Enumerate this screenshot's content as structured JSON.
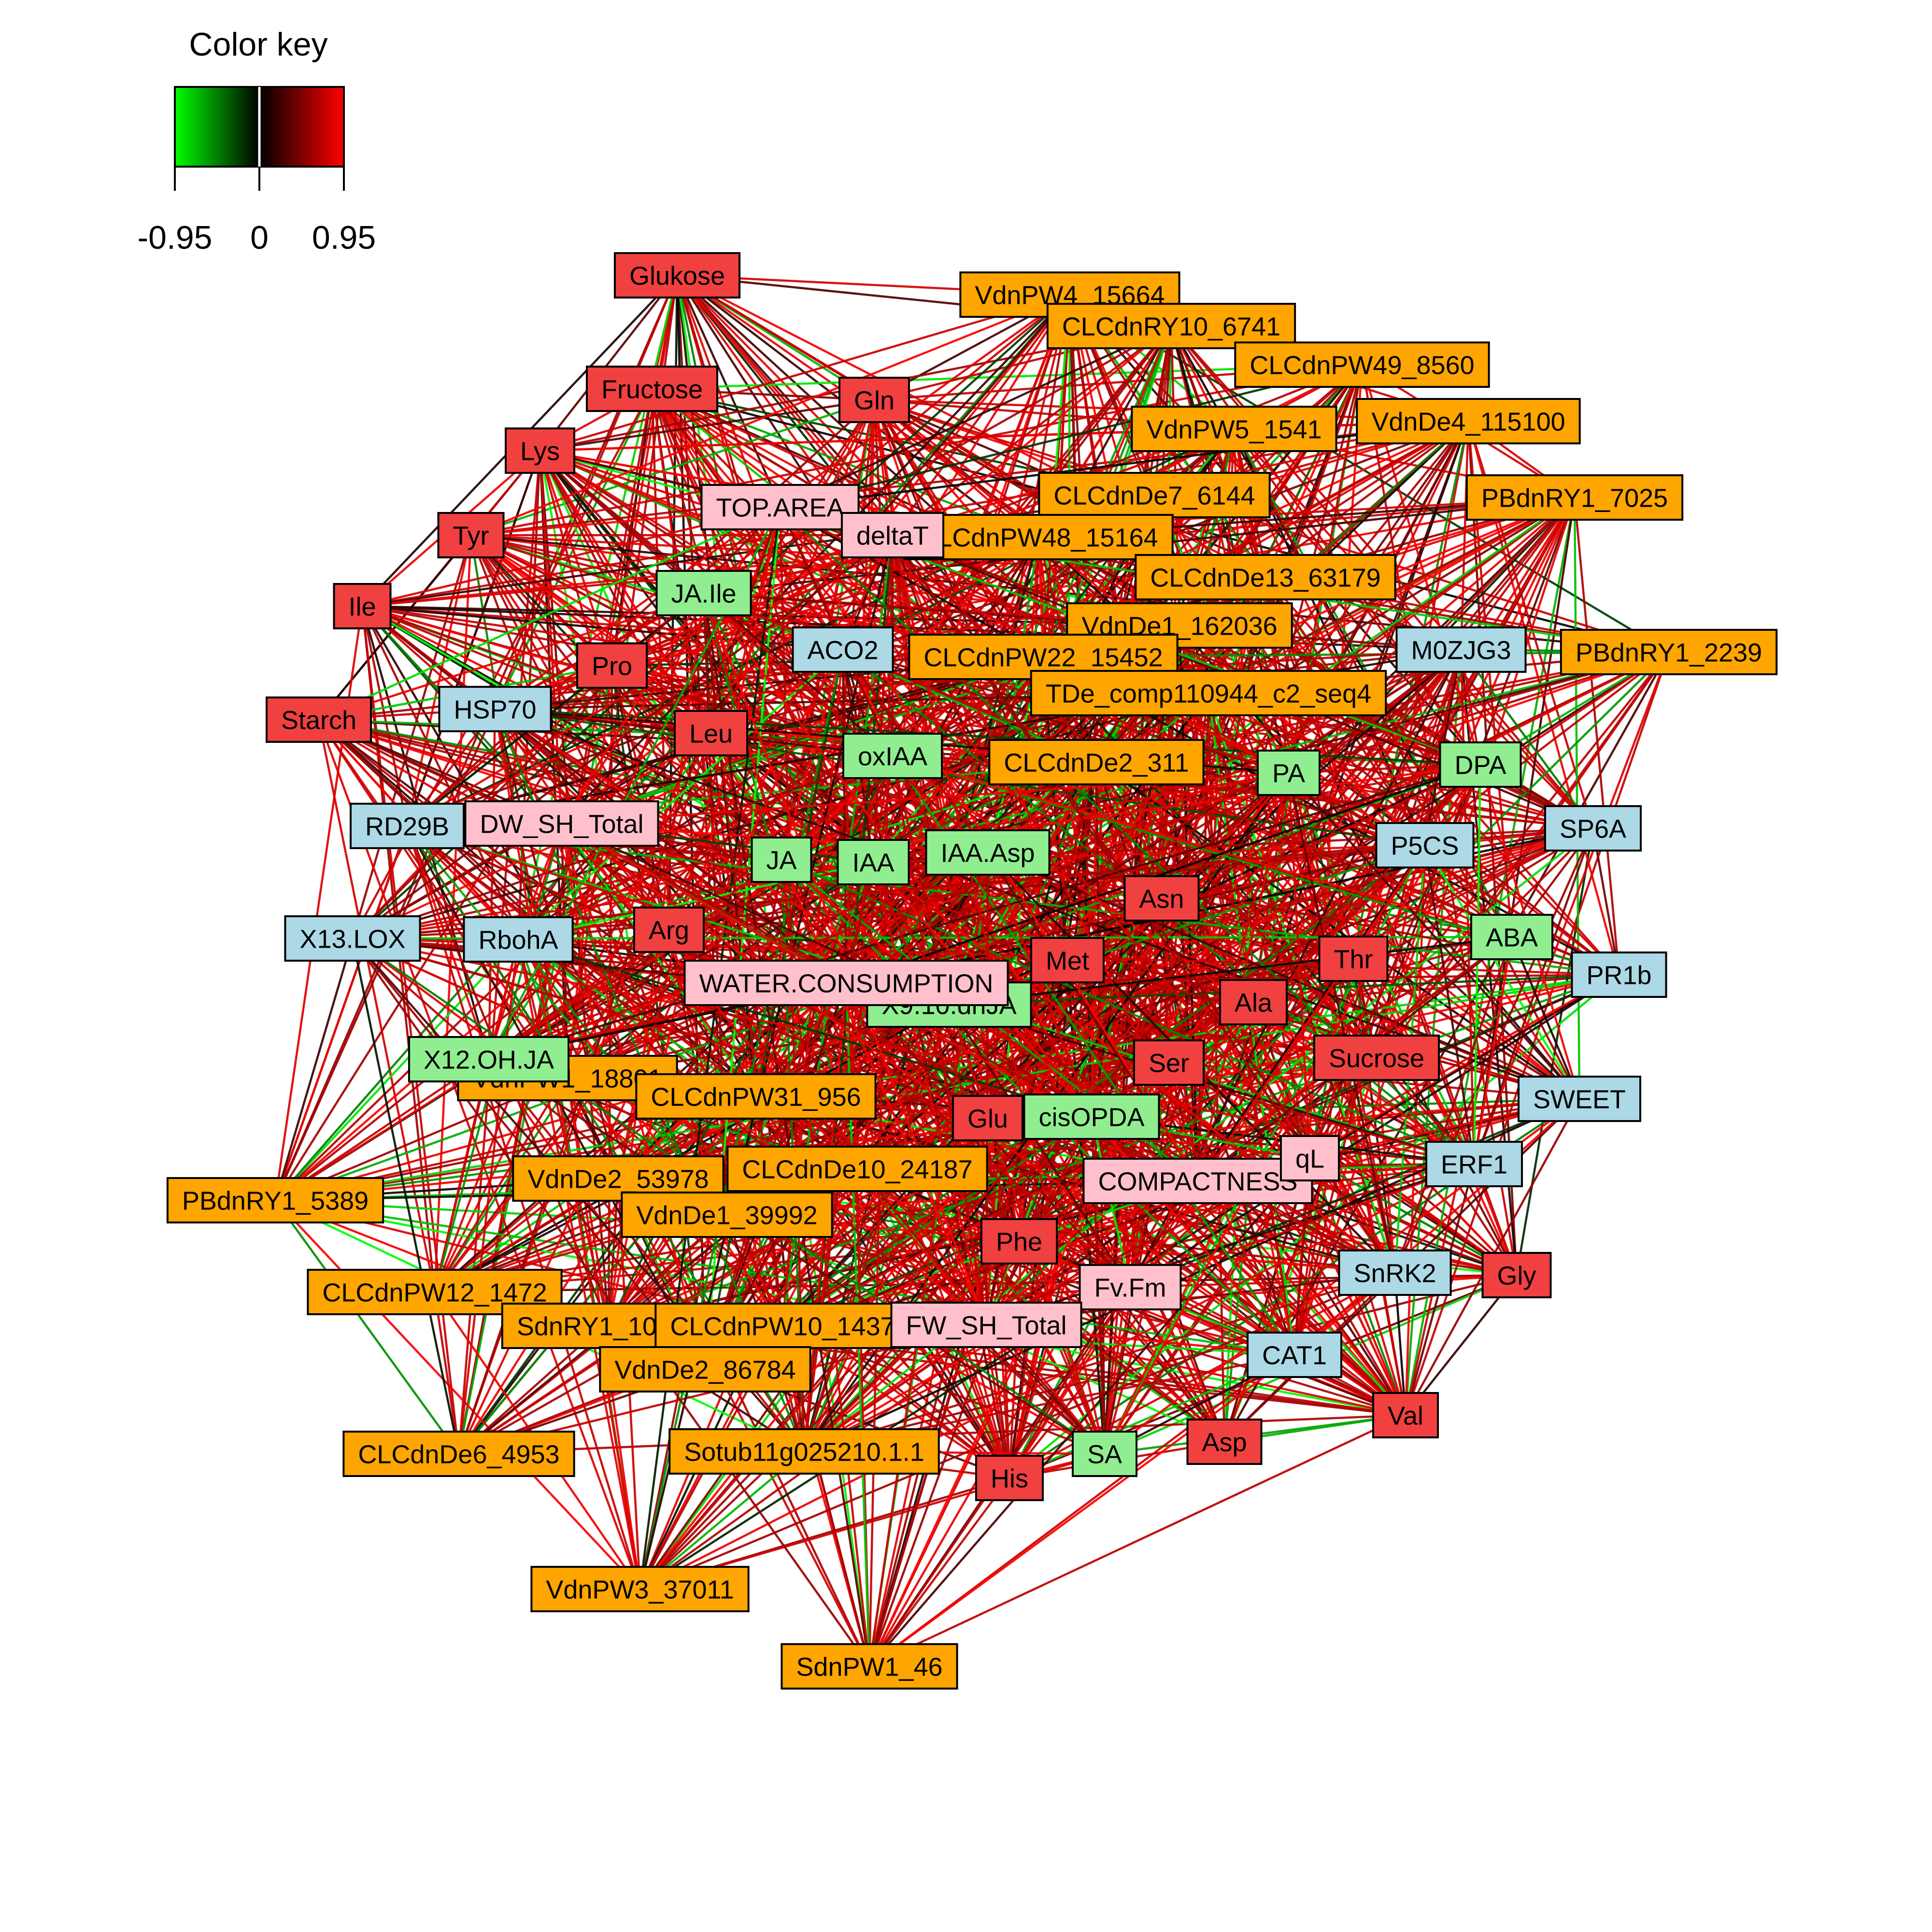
{
  "legend": {
    "title": "Color key",
    "ticks": [
      "-0.95",
      "0",
      "0.95"
    ],
    "colors": {
      "low": "#00FF00",
      "mid": "#000000",
      "high": "#FF0000"
    }
  },
  "categories": {
    "metabolite": {
      "fill": "#F04040"
    },
    "transcript": {
      "fill": "#FFA500"
    },
    "gene": {
      "fill": "#ADD8E6"
    },
    "hormone": {
      "fill": "#90EE90"
    },
    "phenotype": {
      "fill": "#FFC0CB"
    }
  },
  "nodes": [
    {
      "id": "Glukose",
      "type": "metabolite"
    },
    {
      "id": "Fructose",
      "type": "metabolite"
    },
    {
      "id": "Gln",
      "type": "metabolite"
    },
    {
      "id": "Lys",
      "type": "metabolite"
    },
    {
      "id": "Tyr",
      "type": "metabolite"
    },
    {
      "id": "Ile",
      "type": "metabolite"
    },
    {
      "id": "Pro",
      "type": "metabolite"
    },
    {
      "id": "Starch",
      "type": "metabolite"
    },
    {
      "id": "Leu",
      "type": "metabolite"
    },
    {
      "id": "Arg",
      "type": "metabolite"
    },
    {
      "id": "Asn",
      "type": "metabolite"
    },
    {
      "id": "Met",
      "type": "metabolite"
    },
    {
      "id": "Thr",
      "type": "metabolite"
    },
    {
      "id": "Ala",
      "type": "metabolite"
    },
    {
      "id": "Ser",
      "type": "metabolite"
    },
    {
      "id": "Sucrose",
      "type": "metabolite"
    },
    {
      "id": "Glu",
      "type": "metabolite"
    },
    {
      "id": "Phe",
      "type": "metabolite"
    },
    {
      "id": "Gly",
      "type": "metabolite"
    },
    {
      "id": "Val",
      "type": "metabolite"
    },
    {
      "id": "Asp",
      "type": "metabolite"
    },
    {
      "id": "His",
      "type": "metabolite"
    },
    {
      "id": "VdnPW4_15664",
      "type": "transcript"
    },
    {
      "id": "CLCdnRY10_6741",
      "type": "transcript"
    },
    {
      "id": "CLCdnPW49_8560",
      "type": "transcript"
    },
    {
      "id": "VdnPW5_1541",
      "type": "transcript"
    },
    {
      "id": "VdnDe4_115100",
      "type": "transcript"
    },
    {
      "id": "CLCdnDe7_6144",
      "type": "transcript"
    },
    {
      "id": "PBdnRY1_7025",
      "type": "transcript"
    },
    {
      "id": "CLCdnPW48_15164",
      "type": "transcript"
    },
    {
      "id": "CLCdnDe13_63179",
      "type": "transcript"
    },
    {
      "id": "VdnDe1_162036",
      "type": "transcript"
    },
    {
      "id": "CLCdnPW22_15452",
      "type": "transcript"
    },
    {
      "id": "PBdnRY1_2239",
      "type": "transcript"
    },
    {
      "id": "TDe_comp110944_c2_seq4",
      "type": "transcript"
    },
    {
      "id": "CLCdnDe2_311",
      "type": "transcript"
    },
    {
      "id": "VdnPW1_18801",
      "type": "transcript"
    },
    {
      "id": "CLCdnPW31_956",
      "type": "transcript"
    },
    {
      "id": "VdnDe2_53978",
      "type": "transcript"
    },
    {
      "id": "CLCdnDe10_24187",
      "type": "transcript"
    },
    {
      "id": "PBdnRY1_5389",
      "type": "transcript"
    },
    {
      "id": "VdnDe1_39992",
      "type": "transcript"
    },
    {
      "id": "CLCdnPW12_1472",
      "type": "transcript"
    },
    {
      "id": "SdnRY1_10712",
      "type": "transcript"
    },
    {
      "id": "CLCdnPW10_1437",
      "type": "transcript"
    },
    {
      "id": "VdnDe2_86784",
      "type": "transcript"
    },
    {
      "id": "CLCdnDe6_4953",
      "type": "transcript"
    },
    {
      "id": "Sotub11g025210.1.1",
      "type": "transcript"
    },
    {
      "id": "VdnPW3_37011",
      "type": "transcript"
    },
    {
      "id": "SdnPW1_46",
      "type": "transcript"
    },
    {
      "id": "ACO2",
      "type": "gene"
    },
    {
      "id": "M0ZJG3",
      "type": "gene"
    },
    {
      "id": "HSP70",
      "type": "gene"
    },
    {
      "id": "RD29B",
      "type": "gene"
    },
    {
      "id": "P5CS",
      "type": "gene"
    },
    {
      "id": "SP6A",
      "type": "gene"
    },
    {
      "id": "X13.LOX",
      "type": "gene"
    },
    {
      "id": "RbohA",
      "type": "gene"
    },
    {
      "id": "PR1b",
      "type": "gene"
    },
    {
      "id": "SWEET",
      "type": "gene"
    },
    {
      "id": "ERF1",
      "type": "gene"
    },
    {
      "id": "SnRK2",
      "type": "gene"
    },
    {
      "id": "CAT1",
      "type": "gene"
    },
    {
      "id": "JA.Ile",
      "type": "hormone"
    },
    {
      "id": "oxIAA",
      "type": "hormone"
    },
    {
      "id": "PA",
      "type": "hormone"
    },
    {
      "id": "DPA",
      "type": "hormone"
    },
    {
      "id": "JA",
      "type": "hormone"
    },
    {
      "id": "IAA",
      "type": "hormone"
    },
    {
      "id": "IAA.Asp",
      "type": "hormone"
    },
    {
      "id": "ABA",
      "type": "hormone"
    },
    {
      "id": "X9.10.dhJA",
      "type": "hormone"
    },
    {
      "id": "X12.OH.JA",
      "type": "hormone"
    },
    {
      "id": "cisOPDA",
      "type": "hormone"
    },
    {
      "id": "SA",
      "type": "hormone"
    },
    {
      "id": "TOP.AREA",
      "type": "phenotype"
    },
    {
      "id": "deltaT",
      "type": "phenotype"
    },
    {
      "id": "DW_SH_Total",
      "type": "phenotype"
    },
    {
      "id": "WATER.CONSUMPTION",
      "type": "phenotype"
    },
    {
      "id": "COMPACTNESS",
      "type": "phenotype"
    },
    {
      "id": "qL",
      "type": "phenotype"
    },
    {
      "id": "Fv.Fm",
      "type": "phenotype"
    },
    {
      "id": "FW_SH_Total",
      "type": "phenotype"
    }
  ]
}
